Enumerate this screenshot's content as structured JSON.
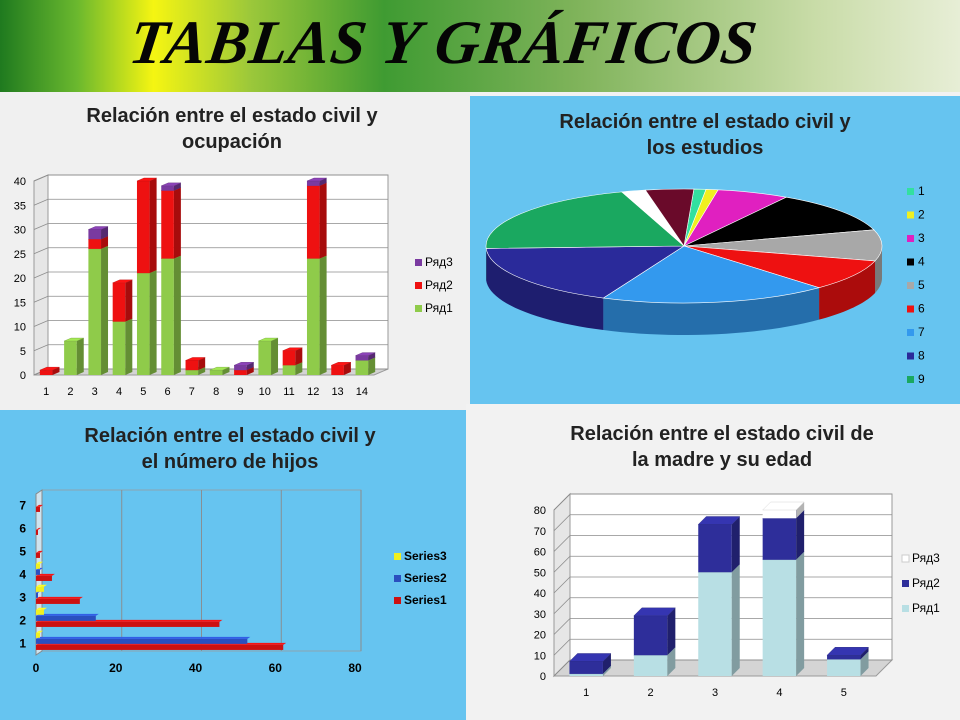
{
  "header": {
    "title": "TABLAS Y GRÁFICOS"
  },
  "chart_data": [
    {
      "type": "bar",
      "stacked": true,
      "title_lines": [
        "Relación entre el estado civil y",
        "ocupación"
      ],
      "categories": [
        "1",
        "2",
        "3",
        "4",
        "5",
        "6",
        "7",
        "8",
        "9",
        "10",
        "11",
        "12",
        "13",
        "14"
      ],
      "series": [
        {
          "name": "Ряд1",
          "color": "#8fcb4a",
          "values": [
            0,
            7,
            26,
            11,
            21,
            24,
            1,
            1,
            0,
            7,
            2,
            24,
            0,
            3
          ]
        },
        {
          "name": "Ряд2",
          "color": "#ee1111",
          "values": [
            1,
            0,
            2,
            8,
            19,
            14,
            2,
            0,
            1,
            0,
            3,
            15,
            2,
            0
          ]
        },
        {
          "name": "Ряд3",
          "color": "#7a3aa0",
          "values": [
            0,
            0,
            2,
            0,
            0,
            1,
            0,
            0,
            1,
            0,
            0,
            1,
            0,
            1
          ]
        }
      ],
      "yticks": [
        "0",
        "5",
        "10",
        "15",
        "20",
        "25",
        "30",
        "35",
        "40"
      ],
      "ylim": [
        0,
        40
      ],
      "legend": "right"
    },
    {
      "type": "pie",
      "title_lines": [
        "Relación entre el estado civil y",
        "los estudios"
      ],
      "categories": [
        "1",
        "2",
        "3",
        "4",
        "5",
        "6",
        "7",
        "8",
        "9"
      ],
      "values": [
        1,
        1,
        6,
        12,
        9,
        9,
        19,
        18,
        21
      ],
      "colors": [
        "#33e0a0",
        "#f0f020",
        "#e020c0",
        "#000000",
        "#a8a8a8",
        "#ee1111",
        "#3399ee",
        "#2a2a9a",
        "#1aa860"
      ],
      "extra_slices": [
        {
          "value": 2,
          "color": "#ffffff"
        },
        {
          "value": 4,
          "color": "#6a0a2a"
        }
      ],
      "legend": "right"
    },
    {
      "type": "bar",
      "orientation": "horizontal",
      "title_lines": [
        "Relación entre el estado civil y",
        "el número de hijos"
      ],
      "categories": [
        "1",
        "2",
        "3",
        "4",
        "5",
        "6",
        "7"
      ],
      "series": [
        {
          "name": "Series1",
          "color": "#cc1111",
          "values": [
            62,
            46,
            11,
            4,
            1,
            0.5,
            1
          ]
        },
        {
          "name": "Series2",
          "color": "#2a4fbf",
          "values": [
            53,
            15,
            0.5,
            1,
            0,
            0,
            0
          ]
        },
        {
          "name": "Series3",
          "color": "#f0f020",
          "values": [
            1,
            2,
            2,
            1,
            0,
            0,
            0
          ]
        }
      ],
      "xticks": [
        "0",
        "20",
        "40",
        "60",
        "80"
      ],
      "xlim": [
        0,
        80
      ],
      "legend": "right"
    },
    {
      "type": "bar",
      "stacked": true,
      "title_lines": [
        "Relación entre el estado civil de",
        "la madre y su edad"
      ],
      "categories": [
        "1",
        "2",
        "3",
        "4",
        "5"
      ],
      "series": [
        {
          "name": "Ряд1",
          "color": "#b8dfe4",
          "values": [
            1,
            10,
            50,
            56,
            8
          ]
        },
        {
          "name": "Ряд2",
          "color": "#2e2e9a",
          "values": [
            6,
            19,
            23,
            20,
            2
          ]
        },
        {
          "name": "Ряд3",
          "color": "#ffffff",
          "values": [
            0,
            0,
            0,
            4,
            0
          ]
        }
      ],
      "yticks": [
        "0",
        "10",
        "20",
        "30",
        "40",
        "50",
        "60",
        "70",
        "80"
      ],
      "ylim": [
        0,
        80
      ],
      "legend": "right"
    }
  ]
}
